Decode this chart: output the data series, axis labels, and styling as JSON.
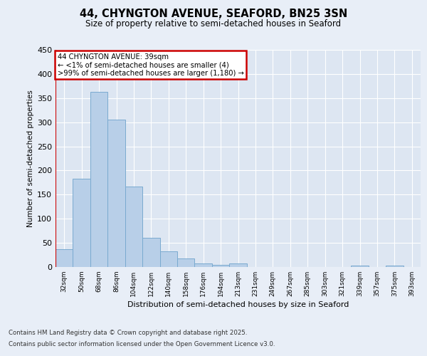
{
  "title_line1": "44, CHYNGTON AVENUE, SEAFORD, BN25 3SN",
  "title_line2": "Size of property relative to semi-detached houses in Seaford",
  "xlabel": "Distribution of semi-detached houses by size in Seaford",
  "ylabel": "Number of semi-detached properties",
  "categories": [
    "32sqm",
    "50sqm",
    "68sqm",
    "86sqm",
    "104sqm",
    "122sqm",
    "140sqm",
    "158sqm",
    "176sqm",
    "194sqm",
    "213sqm",
    "231sqm",
    "249sqm",
    "267sqm",
    "285sqm",
    "303sqm",
    "321sqm",
    "339sqm",
    "357sqm",
    "375sqm",
    "393sqm"
  ],
  "values": [
    37,
    183,
    363,
    306,
    166,
    60,
    33,
    18,
    8,
    5,
    8,
    0,
    0,
    0,
    0,
    0,
    0,
    3,
    0,
    3,
    0
  ],
  "bar_color": "#b8cfe8",
  "bar_edge_color": "#7aaad0",
  "annotation_title": "44 CHYNGTON AVENUE: 39sqm",
  "annotation_line2": "← <1% of semi-detached houses are smaller (4)",
  "annotation_line3": ">99% of semi-detached houses are larger (1,180) →",
  "annotation_box_color": "#cc0000",
  "ylim": [
    0,
    450
  ],
  "yticks": [
    0,
    50,
    100,
    150,
    200,
    250,
    300,
    350,
    400,
    450
  ],
  "background_color": "#e8eef7",
  "plot_bg_color": "#dde6f2",
  "grid_color": "#ffffff",
  "footnote_line1": "Contains HM Land Registry data © Crown copyright and database right 2025.",
  "footnote_line2": "Contains public sector information licensed under the Open Government Licence v3.0."
}
